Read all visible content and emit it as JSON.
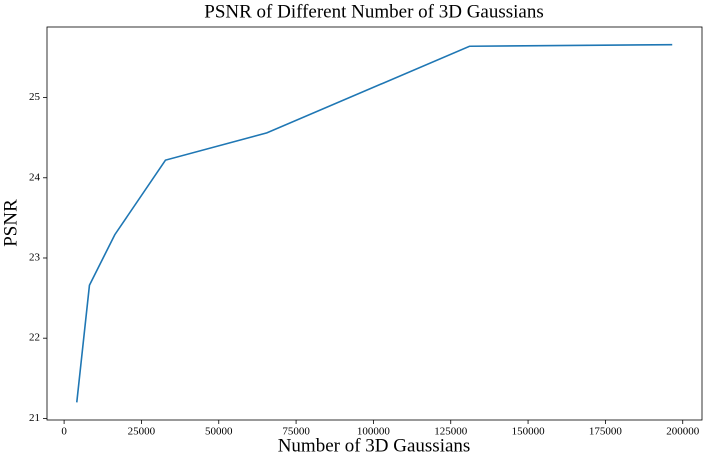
{
  "chart_data": {
    "type": "line",
    "title": "PSNR of Different Number of 3D Gaussians",
    "x_label": "Number of 3D Gaussians",
    "y_label": "PSNR",
    "x": [
      4096,
      8192,
      16384,
      32768,
      65536,
      131072,
      196608
    ],
    "series": [
      {
        "color": "#1f77b4",
        "values": [
          21.2,
          22.66,
          23.29,
          24.22,
          24.56,
          25.64,
          25.66
        ]
      }
    ],
    "xlim": [
      -5530,
      206234
    ],
    "xticks": [
      0,
      25000,
      50000,
      75000,
      100000,
      125000,
      150000,
      175000,
      200000
    ],
    "ylim": [
      20.98,
      25.88
    ],
    "yticks": [
      21,
      22,
      23,
      24,
      25
    ],
    "grid": false
  }
}
